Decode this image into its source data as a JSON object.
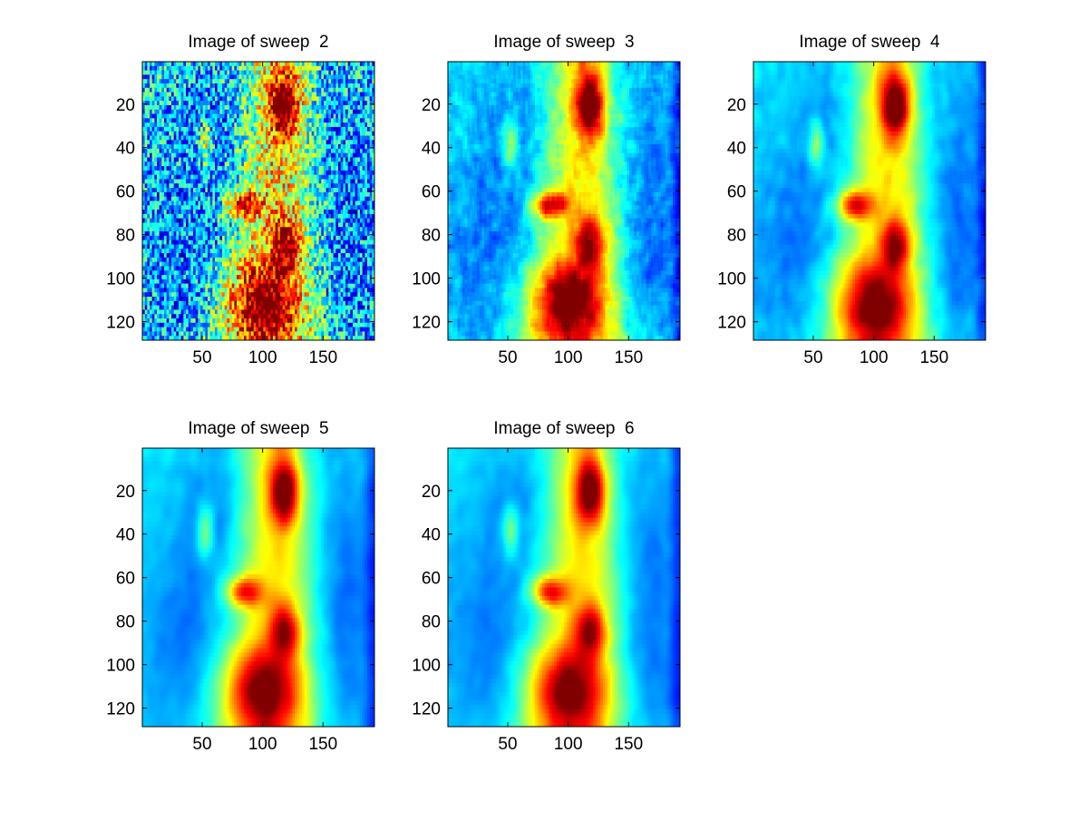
{
  "figure": {
    "background": "#ffffff"
  },
  "chart_data": [
    {
      "type": "heatmap",
      "title": "Image of sweep  2",
      "colormap": "jet",
      "smoothing": 0,
      "xlim": [
        0.5,
        192.5
      ],
      "ylim": [
        128.5,
        0.5
      ],
      "y_reversed": true,
      "xticks": [
        50,
        100,
        150
      ],
      "yticks": [
        20,
        40,
        60,
        80,
        100,
        120
      ],
      "grid": false,
      "description_data": {
        "noise_level": 0.22,
        "hot_band_center_x": 112,
        "right_edge_dark": false
      }
    },
    {
      "type": "heatmap",
      "title": "Image of sweep  3",
      "colormap": "jet",
      "smoothing": 1,
      "xlim": [
        0.5,
        192.5
      ],
      "ylim": [
        128.5,
        0.5
      ],
      "y_reversed": true,
      "xticks": [
        50,
        100,
        150
      ],
      "yticks": [
        20,
        40,
        60,
        80,
        100,
        120
      ],
      "grid": false,
      "description_data": {
        "noise_level": 0.14,
        "hot_band_center_x": 110,
        "right_edge_dark": true
      }
    },
    {
      "type": "heatmap",
      "title": "Image of sweep  4",
      "colormap": "jet",
      "smoothing": 2,
      "xlim": [
        0.5,
        192.5
      ],
      "ylim": [
        128.5,
        0.5
      ],
      "y_reversed": true,
      "xticks": [
        50,
        100,
        150
      ],
      "yticks": [
        20,
        40,
        60,
        80,
        100,
        120
      ],
      "grid": false,
      "description_data": {
        "noise_level": 0.1,
        "hot_band_center_x": 110,
        "right_edge_dark": true
      }
    },
    {
      "type": "heatmap",
      "title": "Image of sweep  5",
      "colormap": "jet",
      "smoothing": 3,
      "xlim": [
        0.5,
        192.5
      ],
      "ylim": [
        128.5,
        0.5
      ],
      "y_reversed": true,
      "xticks": [
        50,
        100,
        150
      ],
      "yticks": [
        20,
        40,
        60,
        80,
        100,
        120
      ],
      "grid": false,
      "description_data": {
        "noise_level": 0.08,
        "hot_band_center_x": 110,
        "right_edge_dark": true
      }
    },
    {
      "type": "heatmap",
      "title": "Image of sweep  6",
      "colormap": "jet",
      "smoothing": 3,
      "xlim": [
        0.5,
        192.5
      ],
      "ylim": [
        128.5,
        0.5
      ],
      "y_reversed": true,
      "xticks": [
        50,
        100,
        150
      ],
      "yticks": [
        20,
        40,
        60,
        80,
        100,
        120
      ],
      "grid": false,
      "description_data": {
        "noise_level": 0.08,
        "hot_band_center_x": 110,
        "right_edge_dark": true
      }
    }
  ]
}
